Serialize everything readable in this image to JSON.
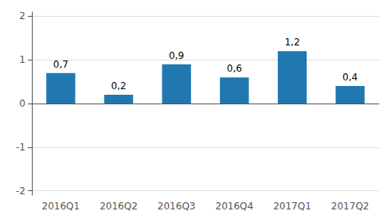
{
  "chart_data": {
    "type": "bar",
    "categories": [
      "2016Q1",
      "2016Q2",
      "2016Q3",
      "2016Q4",
      "2017Q1",
      "2017Q2"
    ],
    "values": [
      0.7,
      0.2,
      0.9,
      0.6,
      1.2,
      0.4
    ],
    "value_labels": [
      "0,7",
      "0,2",
      "0,9",
      "0,6",
      "1,2",
      "0,4"
    ],
    "color": "#2178b0",
    "ylim": [
      -2.1,
      2.1
    ],
    "yticks": [
      -2,
      -1,
      0,
      1,
      2
    ],
    "grid": true,
    "data_labels": true
  }
}
